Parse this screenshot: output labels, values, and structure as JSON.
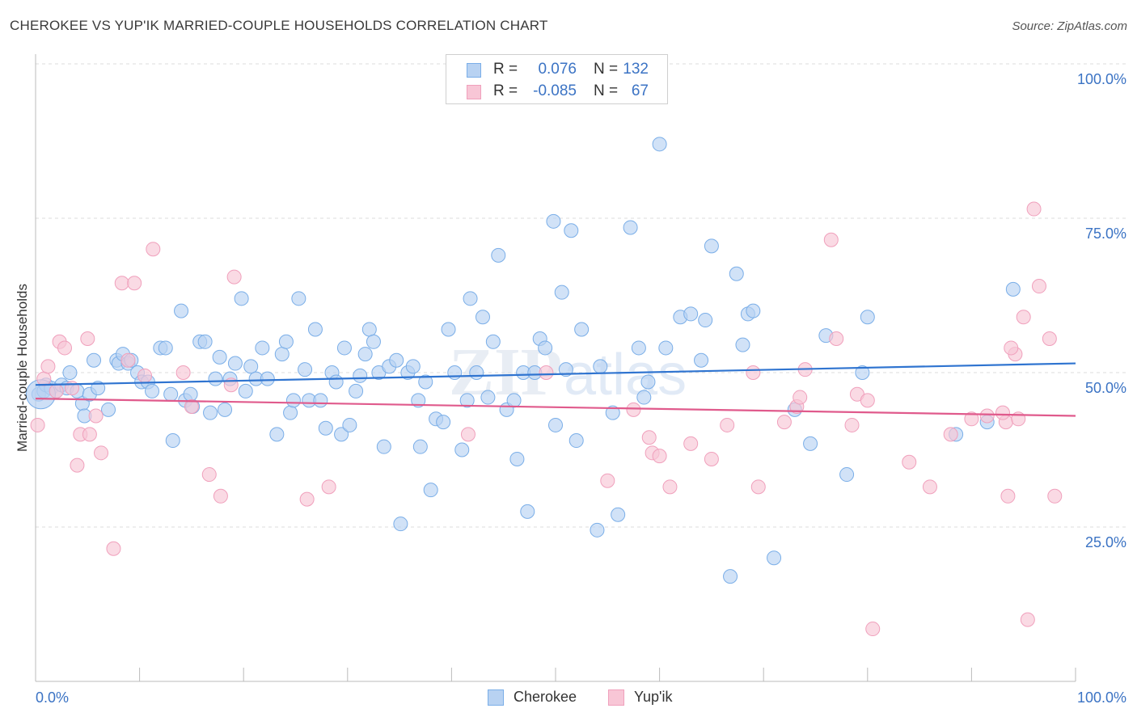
{
  "title": "CHEROKEE VS YUP'IK MARRIED-COUPLE HOUSEHOLDS CORRELATION CHART",
  "source": "Source: ZipAtlas.com",
  "watermark": {
    "zip": "ZIP",
    "atlas": "atlas"
  },
  "legend": {
    "r_label": "R =",
    "n_label": "N =",
    "rows": [
      {
        "series": "Cherokee",
        "r": "0.076",
        "n": "132"
      },
      {
        "series": "Yup'ik",
        "r": "-0.085",
        "n": "67"
      }
    ]
  },
  "chart_data": {
    "type": "scatter",
    "title": "CHEROKEE VS YUP'IK MARRIED-COUPLE HOUSEHOLDS CORRELATION CHART",
    "xlabel": "",
    "ylabel": "Married-couple Households",
    "xlim": [
      0,
      100
    ],
    "ylim": [
      0,
      100
    ],
    "x_tick_labels": [
      "0.0%",
      "100.0%"
    ],
    "y_tick_labels": [
      "100.0%",
      "75.0%",
      "50.0%",
      "25.0%"
    ],
    "y_ticks": [
      100,
      75,
      50,
      25
    ],
    "grid": true,
    "legend_position": "top-center",
    "series": [
      {
        "name": "Cherokee",
        "color": "#7aaee8",
        "fill": "#b8d2f2",
        "line_color": "#2f74d0",
        "trend": {
          "x": [
            0,
            100
          ],
          "y": [
            48.0,
            51.5
          ]
        },
        "points": [
          [
            0.3,
            46.5
          ],
          [
            0.8,
            47.0
          ],
          [
            1.0,
            48.0
          ],
          [
            1.5,
            47.5
          ],
          [
            2.0,
            47.0
          ],
          [
            2.5,
            48.0
          ],
          [
            3.0,
            47.5
          ],
          [
            3.3,
            50.0
          ],
          [
            4.0,
            47.0
          ],
          [
            4.5,
            45.0
          ],
          [
            4.7,
            43.0
          ],
          [
            5.2,
            46.5
          ],
          [
            5.6,
            52.0
          ],
          [
            6.0,
            47.5
          ],
          [
            7.0,
            44.0
          ],
          [
            7.8,
            52.0
          ],
          [
            8.0,
            51.5
          ],
          [
            8.4,
            53.0
          ],
          [
            8.9,
            51.5
          ],
          [
            9.2,
            52.0
          ],
          [
            9.8,
            50.0
          ],
          [
            10.2,
            48.5
          ],
          [
            10.8,
            48.5
          ],
          [
            11.2,
            47.0
          ],
          [
            12.0,
            54.0
          ],
          [
            12.5,
            54.0
          ],
          [
            13.0,
            46.5
          ],
          [
            13.2,
            39.0
          ],
          [
            14.0,
            60.0
          ],
          [
            14.4,
            45.5
          ],
          [
            14.9,
            46.5
          ],
          [
            15.1,
            44.5
          ],
          [
            15.8,
            55.0
          ],
          [
            16.3,
            55.0
          ],
          [
            16.8,
            43.5
          ],
          [
            17.3,
            49.0
          ],
          [
            17.7,
            52.5
          ],
          [
            18.2,
            44.0
          ],
          [
            18.7,
            49.0
          ],
          [
            19.2,
            51.5
          ],
          [
            19.8,
            62.0
          ],
          [
            20.2,
            47.0
          ],
          [
            20.7,
            51.0
          ],
          [
            21.2,
            49.0
          ],
          [
            21.8,
            54.0
          ],
          [
            22.3,
            49.0
          ],
          [
            23.2,
            40.0
          ],
          [
            23.7,
            53.0
          ],
          [
            24.1,
            55.0
          ],
          [
            24.5,
            43.5
          ],
          [
            24.8,
            45.5
          ],
          [
            25.3,
            62.0
          ],
          [
            25.9,
            50.5
          ],
          [
            26.3,
            45.5
          ],
          [
            26.9,
            57.0
          ],
          [
            27.4,
            45.5
          ],
          [
            27.9,
            41.0
          ],
          [
            28.5,
            50.0
          ],
          [
            28.9,
            48.5
          ],
          [
            29.4,
            40.0
          ],
          [
            29.7,
            54.0
          ],
          [
            30.2,
            41.5
          ],
          [
            30.8,
            47.0
          ],
          [
            31.2,
            49.5
          ],
          [
            31.7,
            53.0
          ],
          [
            32.1,
            57.0
          ],
          [
            32.5,
            55.0
          ],
          [
            33.0,
            50.0
          ],
          [
            33.5,
            38.0
          ],
          [
            34.0,
            51.0
          ],
          [
            34.7,
            52.0
          ],
          [
            35.1,
            25.5
          ],
          [
            35.8,
            50.0
          ],
          [
            36.3,
            51.0
          ],
          [
            36.8,
            45.5
          ],
          [
            37.0,
            38.0
          ],
          [
            37.5,
            48.5
          ],
          [
            38.0,
            31.0
          ],
          [
            38.5,
            42.5
          ],
          [
            39.2,
            42.0
          ],
          [
            39.7,
            57.0
          ],
          [
            40.3,
            50.0
          ],
          [
            41.0,
            37.5
          ],
          [
            41.5,
            45.5
          ],
          [
            41.8,
            62.0
          ],
          [
            42.4,
            50.0
          ],
          [
            43.0,
            59.0
          ],
          [
            43.5,
            46.0
          ],
          [
            44.0,
            55.0
          ],
          [
            44.5,
            69.0
          ],
          [
            45.3,
            44.0
          ],
          [
            46.0,
            45.5
          ],
          [
            46.3,
            36.0
          ],
          [
            46.9,
            50.0
          ],
          [
            47.3,
            27.5
          ],
          [
            48.0,
            50.0
          ],
          [
            48.5,
            55.5
          ],
          [
            49.0,
            54.0
          ],
          [
            49.8,
            74.5
          ],
          [
            50.0,
            41.5
          ],
          [
            50.6,
            63.0
          ],
          [
            51.0,
            50.5
          ],
          [
            51.5,
            73.0
          ],
          [
            52.0,
            39.0
          ],
          [
            52.5,
            57.0
          ],
          [
            54.0,
            24.5
          ],
          [
            54.3,
            51.0
          ],
          [
            55.5,
            43.5
          ],
          [
            56.0,
            27.0
          ],
          [
            57.2,
            73.5
          ],
          [
            58.0,
            54.0
          ],
          [
            58.5,
            46.0
          ],
          [
            58.9,
            48.5
          ],
          [
            60.0,
            87.0
          ],
          [
            60.6,
            54.0
          ],
          [
            62.0,
            59.0
          ],
          [
            63.0,
            59.5
          ],
          [
            64.0,
            52.0
          ],
          [
            64.4,
            58.5
          ],
          [
            65.0,
            70.5
          ],
          [
            66.8,
            17.0
          ],
          [
            67.4,
            66.0
          ],
          [
            68.0,
            54.5
          ],
          [
            68.5,
            59.5
          ],
          [
            69.0,
            60.0
          ],
          [
            71.0,
            20.0
          ],
          [
            73.0,
            44.0
          ],
          [
            74.5,
            38.5
          ],
          [
            76.0,
            56.0
          ],
          [
            78.0,
            33.5
          ],
          [
            79.5,
            50.0
          ],
          [
            80.0,
            59.0
          ],
          [
            88.5,
            40.0
          ],
          [
            91.5,
            42.0
          ],
          [
            94.0,
            63.5
          ]
        ],
        "big_point": [
          0.5,
          46.5
        ]
      },
      {
        "name": "Yup'ik",
        "color": "#f0a0bc",
        "fill": "#f8c6d6",
        "line_color": "#e05a8c",
        "trend": {
          "x": [
            0,
            100
          ],
          "y": [
            45.8,
            43.0
          ]
        },
        "points": [
          [
            0.2,
            41.5
          ],
          [
            0.8,
            49.0
          ],
          [
            1.2,
            51.0
          ],
          [
            2.0,
            47.0
          ],
          [
            2.3,
            55.0
          ],
          [
            2.8,
            54.0
          ],
          [
            3.5,
            47.5
          ],
          [
            4.0,
            35.0
          ],
          [
            4.3,
            40.0
          ],
          [
            5.0,
            55.5
          ],
          [
            5.2,
            40.0
          ],
          [
            5.8,
            43.0
          ],
          [
            6.3,
            37.0
          ],
          [
            7.5,
            21.5
          ],
          [
            8.3,
            64.5
          ],
          [
            8.9,
            52.0
          ],
          [
            9.5,
            64.5
          ],
          [
            10.5,
            49.5
          ],
          [
            11.3,
            70.0
          ],
          [
            14.2,
            50.0
          ],
          [
            15.0,
            44.5
          ],
          [
            16.7,
            33.5
          ],
          [
            17.8,
            30.0
          ],
          [
            18.8,
            48.0
          ],
          [
            19.1,
            65.5
          ],
          [
            26.1,
            29.5
          ],
          [
            28.2,
            31.5
          ],
          [
            41.6,
            40.0
          ],
          [
            49.1,
            50.0
          ],
          [
            55.0,
            32.5
          ],
          [
            57.5,
            44.0
          ],
          [
            59.0,
            39.5
          ],
          [
            59.3,
            37.0
          ],
          [
            60.0,
            36.5
          ],
          [
            61.0,
            31.5
          ],
          [
            63.0,
            38.5
          ],
          [
            65.0,
            36.0
          ],
          [
            66.5,
            41.5
          ],
          [
            69.0,
            50.0
          ],
          [
            69.5,
            31.5
          ],
          [
            72.0,
            42.0
          ],
          [
            73.2,
            44.5
          ],
          [
            73.5,
            46.0
          ],
          [
            74.0,
            50.5
          ],
          [
            76.5,
            71.5
          ],
          [
            77.0,
            55.5
          ],
          [
            79.0,
            46.5
          ],
          [
            80.0,
            45.5
          ],
          [
            80.5,
            8.5
          ],
          [
            78.5,
            41.5
          ],
          [
            84.0,
            35.5
          ],
          [
            86.0,
            31.5
          ],
          [
            88.0,
            40.0
          ],
          [
            90.0,
            42.5
          ],
          [
            91.5,
            43.0
          ],
          [
            93.3,
            42.0
          ],
          [
            93.0,
            43.5
          ],
          [
            94.2,
            53.0
          ],
          [
            93.8,
            54.0
          ],
          [
            94.5,
            42.5
          ],
          [
            95.0,
            59.0
          ],
          [
            95.4,
            10.0
          ],
          [
            96.0,
            76.5
          ],
          [
            97.5,
            55.5
          ],
          [
            98.0,
            30.0
          ],
          [
            96.5,
            64.0
          ],
          [
            93.5,
            30.0
          ]
        ]
      }
    ]
  },
  "bottom_legend": [
    "Cherokee",
    "Yup'ik"
  ]
}
